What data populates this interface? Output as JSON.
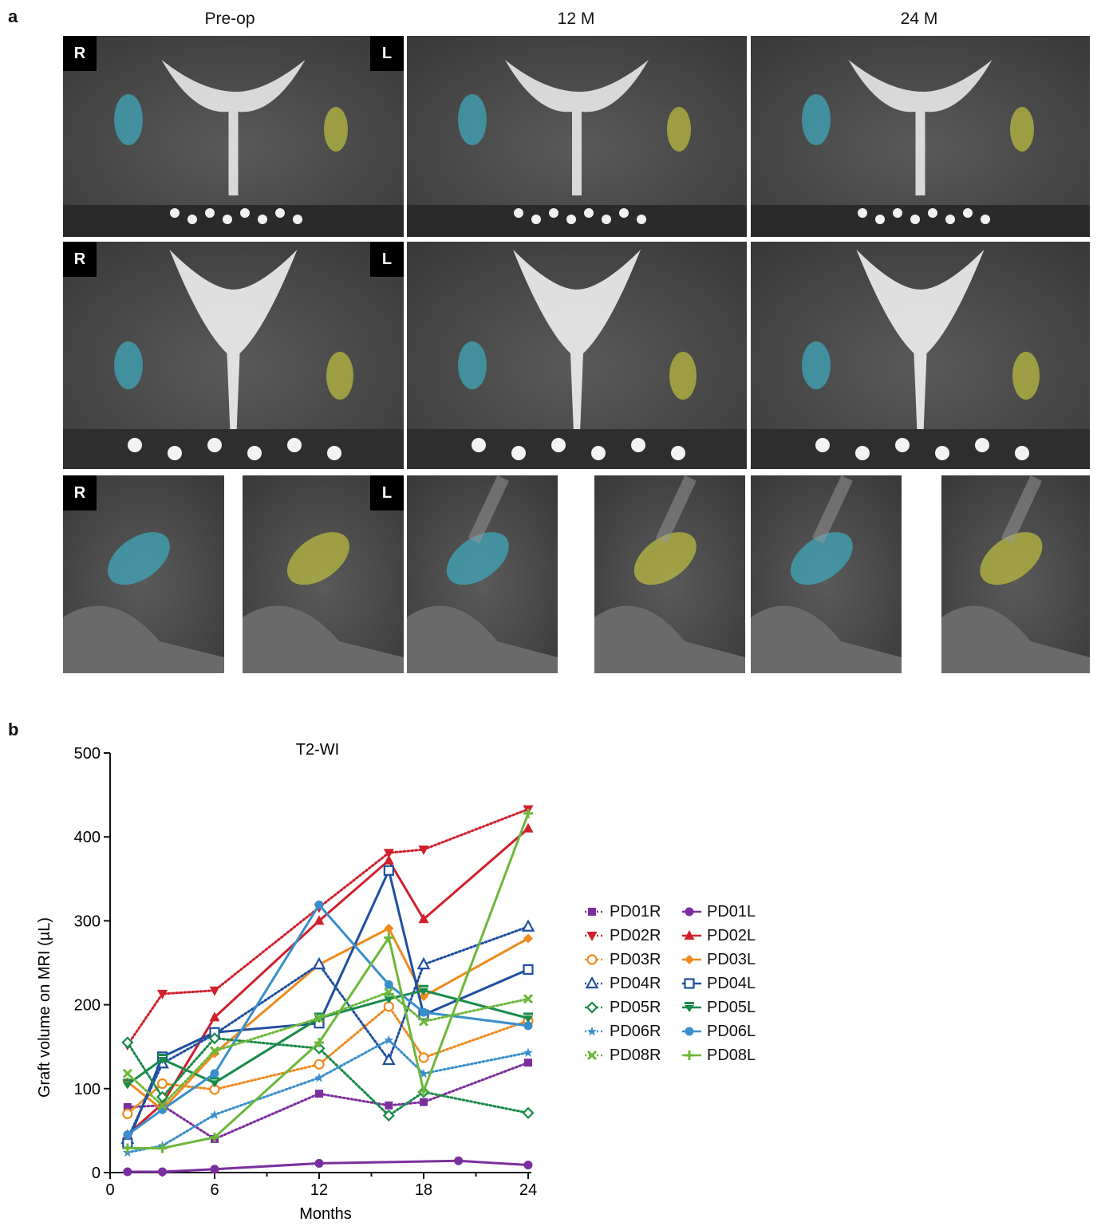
{
  "panel_a": {
    "letter": "a",
    "columns": [
      "Pre-op",
      "12 M",
      "24 M"
    ],
    "side_tags": {
      "right": "R",
      "left": "L"
    }
  },
  "panel_b": {
    "letter": "b"
  },
  "chart_data": {
    "type": "line",
    "title": "T2-WI",
    "xlabel": "Months",
    "ylabel": "Graft volume on MRI (µL)",
    "xlim": [
      0,
      24
    ],
    "ylim": [
      0,
      500
    ],
    "xticks": [
      0,
      6,
      12,
      18,
      24
    ],
    "yticks": [
      0,
      100,
      200,
      300,
      400,
      500
    ],
    "series": [
      {
        "name": "PD01R",
        "color": "#7b2f9e",
        "dash": "dotted",
        "marker": "square",
        "points": [
          [
            1,
            78
          ],
          [
            3,
            80
          ],
          [
            6,
            40
          ],
          [
            12,
            94
          ],
          [
            16,
            80
          ],
          [
            18,
            84
          ],
          [
            24,
            131
          ]
        ]
      },
      {
        "name": "PD01L",
        "color": "#7b2f9e",
        "dash": "solid",
        "marker": "circle",
        "points": [
          [
            1,
            1
          ],
          [
            3,
            1
          ],
          [
            6,
            4
          ],
          [
            12,
            11
          ],
          [
            20,
            14
          ],
          [
            24,
            9
          ]
        ]
      },
      {
        "name": "PD02R",
        "color": "#d0202d",
        "dash": "dotted",
        "marker": "tri-down",
        "points": [
          [
            1,
            152
          ],
          [
            3,
            213
          ],
          [
            6,
            217
          ],
          [
            12,
            316
          ],
          [
            16,
            381
          ],
          [
            18,
            385
          ],
          [
            24,
            433
          ]
        ]
      },
      {
        "name": "PD02L",
        "color": "#d0202d",
        "dash": "solid",
        "marker": "tri-up",
        "points": [
          [
            1,
            45
          ],
          [
            3,
            82
          ],
          [
            6,
            185
          ],
          [
            12,
            300
          ],
          [
            16,
            372
          ],
          [
            18,
            302
          ],
          [
            24,
            410
          ]
        ]
      },
      {
        "name": "PD03R",
        "color": "#ef8a1e",
        "dash": "dotted",
        "marker": "open-circle",
        "points": [
          [
            1,
            70
          ],
          [
            3,
            106
          ],
          [
            6,
            99
          ],
          [
            12,
            129
          ],
          [
            16,
            198
          ],
          [
            18,
            137
          ],
          [
            24,
            181
          ]
        ]
      },
      {
        "name": "PD03L",
        "color": "#ef8a1e",
        "dash": "solid",
        "marker": "diamond-solid",
        "points": [
          [
            1,
            108
          ],
          [
            3,
            75
          ],
          [
            6,
            142
          ],
          [
            12,
            248
          ],
          [
            16,
            291
          ],
          [
            18,
            210
          ],
          [
            24,
            279
          ]
        ]
      },
      {
        "name": "PD04R",
        "color": "#1f4fa0",
        "dash": "dotted",
        "marker": "open-tri-up",
        "points": [
          [
            1,
            40
          ],
          [
            3,
            130
          ],
          [
            6,
            165
          ],
          [
            12,
            248
          ],
          [
            16,
            134
          ],
          [
            18,
            248
          ],
          [
            24,
            293
          ]
        ]
      },
      {
        "name": "PD04L",
        "color": "#1f4fa0",
        "dash": "solid",
        "marker": "open-square",
        "points": [
          [
            1,
            35
          ],
          [
            3,
            138
          ],
          [
            6,
            167
          ],
          [
            12,
            178
          ],
          [
            16,
            360
          ],
          [
            18,
            188
          ],
          [
            24,
            242
          ]
        ]
      },
      {
        "name": "PD05R",
        "color": "#1a8a4a",
        "dash": "dotted",
        "marker": "open-diamond",
        "points": [
          [
            1,
            155
          ],
          [
            3,
            90
          ],
          [
            6,
            160
          ],
          [
            12,
            148
          ],
          [
            16,
            68
          ],
          [
            18,
            96
          ],
          [
            24,
            71
          ]
        ]
      },
      {
        "name": "PD05L",
        "color": "#1a8a4a",
        "dash": "solid",
        "marker": "tri-down-bar",
        "points": [
          [
            1,
            105
          ],
          [
            3,
            135
          ],
          [
            6,
            107
          ],
          [
            12,
            184
          ],
          [
            16,
            207
          ],
          [
            18,
            217
          ],
          [
            24,
            184
          ]
        ]
      },
      {
        "name": "PD06R",
        "color": "#3a8fcb",
        "dash": "dotted",
        "marker": "star",
        "points": [
          [
            1,
            24
          ],
          [
            3,
            32
          ],
          [
            6,
            69
          ],
          [
            12,
            113
          ],
          [
            16,
            158
          ],
          [
            18,
            118
          ],
          [
            24,
            143
          ]
        ]
      },
      {
        "name": "PD06L",
        "color": "#3a8fcb",
        "dash": "solid",
        "marker": "circle",
        "points": [
          [
            1,
            45
          ],
          [
            3,
            75
          ],
          [
            6,
            118
          ],
          [
            12,
            319
          ],
          [
            16,
            224
          ],
          [
            18,
            191
          ],
          [
            24,
            175
          ]
        ]
      },
      {
        "name": "PD08R",
        "color": "#6cb83a",
        "dash": "dotted",
        "marker": "cross",
        "points": [
          [
            1,
            118
          ],
          [
            3,
            80
          ],
          [
            6,
            145
          ],
          [
            12,
            184
          ],
          [
            16,
            215
          ],
          [
            18,
            180
          ],
          [
            24,
            207
          ]
        ]
      },
      {
        "name": "PD08L",
        "color": "#6cb83a",
        "dash": "solid",
        "marker": "plus",
        "points": [
          [
            1,
            29
          ],
          [
            3,
            29
          ],
          [
            6,
            42
          ],
          [
            12,
            155
          ],
          [
            16,
            280
          ],
          [
            18,
            97
          ],
          [
            24,
            428
          ]
        ]
      }
    ]
  }
}
